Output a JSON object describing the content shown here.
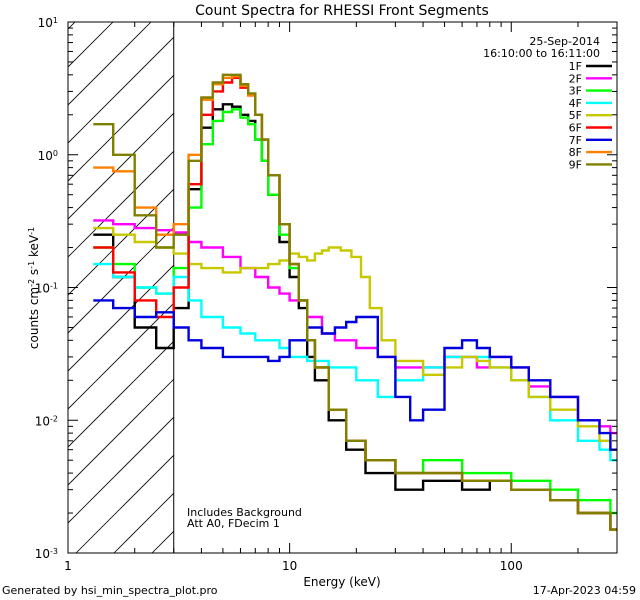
{
  "chart_data": {
    "type": "line",
    "title": "Count Spectra for RHESSI Front Segments",
    "xlabel": "Energy (keV)",
    "ylabel_base": "counts cm",
    "ylabel_exps": [
      "-2",
      "-1",
      "-1"
    ],
    "ylabel_parts": [
      " s",
      " keV"
    ],
    "xscale": "log",
    "yscale": "log",
    "xlim": [
      1,
      300
    ],
    "ylim": [
      0.001,
      10
    ],
    "x_ticks_major": [
      {
        "value": 1,
        "label": "1"
      },
      {
        "value": 10,
        "label": "10"
      },
      {
        "value": 100,
        "label": "100"
      }
    ],
    "y_ticks_major": [
      {
        "value": 0.001,
        "base": "10",
        "exp": "-3"
      },
      {
        "value": 0.01,
        "base": "10",
        "exp": "-2"
      },
      {
        "value": 0.1,
        "base": "10",
        "exp": "-1"
      },
      {
        "value": 1,
        "base": "10",
        "exp": "0"
      },
      {
        "value": 10,
        "base": "10",
        "exp": "1"
      }
    ],
    "shaded_region": {
      "x_range": [
        1,
        3
      ],
      "style": "diagonal-hatch"
    },
    "date": "25-Sep-2014",
    "time_range": "16:10:00 to 16:11:00",
    "annotations": [
      "Includes Background",
      "Att A0, FDecim 1"
    ],
    "legend_position": "top-right",
    "grid": false,
    "series": [
      {
        "name": "1F",
        "color": "#000000",
        "points": [
          [
            1.3,
            0.25
          ],
          [
            1.6,
            0.12
          ],
          [
            2,
            0.05
          ],
          [
            2.5,
            0.035
          ],
          [
            3,
            0.07
          ],
          [
            3.5,
            0.55
          ],
          [
            4,
            1.6
          ],
          [
            4.5,
            2.2
          ],
          [
            5,
            2.4
          ],
          [
            5.5,
            2.3
          ],
          [
            6,
            2.0
          ],
          [
            6.5,
            1.8
          ],
          [
            7,
            1.3
          ],
          [
            7.5,
            0.9
          ],
          [
            8,
            0.5
          ],
          [
            9,
            0.22
          ],
          [
            10,
            0.12
          ],
          [
            11,
            0.07
          ],
          [
            12,
            0.03
          ],
          [
            13,
            0.02
          ],
          [
            15,
            0.01
          ],
          [
            18,
            0.006
          ],
          [
            22,
            0.004
          ],
          [
            30,
            0.003
          ],
          [
            40,
            0.0035
          ],
          [
            60,
            0.003
          ],
          [
            80,
            0.0035
          ],
          [
            100,
            0.003
          ],
          [
            150,
            0.0025
          ],
          [
            200,
            0.002
          ],
          [
            280,
            0.0015
          ]
        ]
      },
      {
        "name": "2F",
        "color": "#ff00ff",
        "points": [
          [
            1.3,
            0.32
          ],
          [
            1.6,
            0.3
          ],
          [
            2,
            0.28
          ],
          [
            2.5,
            0.27
          ],
          [
            3,
            0.26
          ],
          [
            3.5,
            0.22
          ],
          [
            4,
            0.2
          ],
          [
            5,
            0.17
          ],
          [
            6,
            0.14
          ],
          [
            7,
            0.12
          ],
          [
            8,
            0.1
          ],
          [
            9,
            0.09
          ],
          [
            10,
            0.08
          ],
          [
            12,
            0.06
          ],
          [
            14,
            0.045
          ],
          [
            16,
            0.04
          ],
          [
            20,
            0.035
          ],
          [
            25,
            0.03
          ],
          [
            30,
            0.025
          ],
          [
            40,
            0.025
          ],
          [
            50,
            0.03
          ],
          [
            60,
            0.03
          ],
          [
            70,
            0.025
          ],
          [
            80,
            0.03
          ],
          [
            100,
            0.025
          ],
          [
            120,
            0.018
          ],
          [
            150,
            0.015
          ],
          [
            200,
            0.01
          ],
          [
            250,
            0.009
          ],
          [
            280,
            0.008
          ]
        ]
      },
      {
        "name": "3F",
        "color": "#00ff00",
        "points": [
          [
            1.3,
            0.2
          ],
          [
            1.6,
            0.15
          ],
          [
            2,
            0.1
          ],
          [
            2.5,
            0.09
          ],
          [
            3,
            0.14
          ],
          [
            3.5,
            0.4
          ],
          [
            4,
            1.2
          ],
          [
            4.5,
            1.8
          ],
          [
            5,
            2.1
          ],
          [
            5.5,
            2.2
          ],
          [
            6,
            1.9
          ],
          [
            6.5,
            1.7
          ],
          [
            7,
            1.3
          ],
          [
            7.5,
            0.9
          ],
          [
            8,
            0.5
          ],
          [
            9,
            0.25
          ],
          [
            10,
            0.14
          ],
          [
            11,
            0.08
          ],
          [
            12,
            0.04
          ],
          [
            13,
            0.025
          ],
          [
            15,
            0.012
          ],
          [
            18,
            0.007
          ],
          [
            22,
            0.005
          ],
          [
            30,
            0.004
          ],
          [
            40,
            0.005
          ],
          [
            60,
            0.004
          ],
          [
            80,
            0.004
          ],
          [
            100,
            0.0035
          ],
          [
            150,
            0.003
          ],
          [
            200,
            0.0025
          ],
          [
            280,
            0.002
          ]
        ]
      },
      {
        "name": "4F",
        "color": "#00ffff",
        "points": [
          [
            1.3,
            0.15
          ],
          [
            1.6,
            0.12
          ],
          [
            2,
            0.1
          ],
          [
            2.5,
            0.09
          ],
          [
            3,
            0.12
          ],
          [
            3.5,
            0.08
          ],
          [
            4,
            0.06
          ],
          [
            5,
            0.05
          ],
          [
            6,
            0.045
          ],
          [
            7,
            0.04
          ],
          [
            8,
            0.04
          ],
          [
            9,
            0.035
          ],
          [
            10,
            0.03
          ],
          [
            12,
            0.028
          ],
          [
            15,
            0.025
          ],
          [
            20,
            0.02
          ],
          [
            25,
            0.015
          ],
          [
            30,
            0.02
          ],
          [
            40,
            0.025
          ],
          [
            50,
            0.03
          ],
          [
            60,
            0.03
          ],
          [
            80,
            0.025
          ],
          [
            100,
            0.02
          ],
          [
            120,
            0.015
          ],
          [
            150,
            0.01
          ],
          [
            200,
            0.007
          ],
          [
            250,
            0.006
          ],
          [
            280,
            0.005
          ]
        ]
      },
      {
        "name": "5F",
        "color": "#c8c800",
        "points": [
          [
            1.3,
            0.28
          ],
          [
            1.6,
            0.25
          ],
          [
            2,
            0.22
          ],
          [
            2.5,
            0.2
          ],
          [
            3,
            0.18
          ],
          [
            3.5,
            0.15
          ],
          [
            4,
            0.14
          ],
          [
            5,
            0.13
          ],
          [
            6,
            0.14
          ],
          [
            7,
            0.14
          ],
          [
            8,
            0.15
          ],
          [
            9,
            0.16
          ],
          [
            10,
            0.18
          ],
          [
            11,
            0.17
          ],
          [
            12,
            0.16
          ],
          [
            13,
            0.18
          ],
          [
            14,
            0.19
          ],
          [
            15,
            0.2
          ],
          [
            17,
            0.19
          ],
          [
            19,
            0.17
          ],
          [
            21,
            0.12
          ],
          [
            23,
            0.07
          ],
          [
            26,
            0.04
          ],
          [
            30,
            0.028
          ],
          [
            40,
            0.022
          ],
          [
            50,
            0.025
          ],
          [
            60,
            0.03
          ],
          [
            70,
            0.028
          ],
          [
            80,
            0.025
          ],
          [
            100,
            0.02
          ],
          [
            120,
            0.015
          ],
          [
            150,
            0.012
          ],
          [
            200,
            0.009
          ],
          [
            250,
            0.007
          ],
          [
            280,
            0.006
          ]
        ]
      },
      {
        "name": "6F",
        "color": "#ff0000",
        "points": [
          [
            1.3,
            0.2
          ],
          [
            1.6,
            0.13
          ],
          [
            2,
            0.08
          ],
          [
            2.5,
            0.06
          ],
          [
            3,
            0.1
          ],
          [
            3.5,
            0.6
          ],
          [
            4,
            2.0
          ],
          [
            4.5,
            3.0
          ],
          [
            5,
            3.5
          ],
          [
            5.5,
            3.8
          ],
          [
            6,
            3.2
          ],
          [
            6.5,
            2.8
          ],
          [
            7,
            2.0
          ],
          [
            7.5,
            1.3
          ],
          [
            8,
            0.7
          ],
          [
            9,
            0.3
          ],
          [
            10,
            0.15
          ],
          [
            11,
            0.08
          ],
          [
            12,
            0.04
          ],
          [
            13,
            0.025
          ],
          [
            15,
            0.012
          ],
          [
            18,
            0.007
          ],
          [
            22,
            0.005
          ],
          [
            30,
            0.004
          ],
          [
            40,
            0.004
          ],
          [
            60,
            0.0035
          ],
          [
            80,
            0.0035
          ],
          [
            100,
            0.003
          ],
          [
            150,
            0.0025
          ],
          [
            200,
            0.002
          ],
          [
            280,
            0.0015
          ]
        ]
      },
      {
        "name": "7F",
        "color": "#0000dd",
        "points": [
          [
            1.3,
            0.08
          ],
          [
            1.6,
            0.07
          ],
          [
            2,
            0.06
          ],
          [
            2.5,
            0.065
          ],
          [
            3,
            0.05
          ],
          [
            3.5,
            0.04
          ],
          [
            4,
            0.035
          ],
          [
            5,
            0.03
          ],
          [
            6,
            0.03
          ],
          [
            7,
            0.03
          ],
          [
            8,
            0.028
          ],
          [
            9,
            0.03
          ],
          [
            10,
            0.04
          ],
          [
            12,
            0.05
          ],
          [
            14,
            0.045
          ],
          [
            16,
            0.05
          ],
          [
            18,
            0.055
          ],
          [
            20,
            0.06
          ],
          [
            22,
            0.06
          ],
          [
            25,
            0.03
          ],
          [
            30,
            0.015
          ],
          [
            35,
            0.01
          ],
          [
            40,
            0.012
          ],
          [
            50,
            0.035
          ],
          [
            60,
            0.04
          ],
          [
            70,
            0.035
          ],
          [
            80,
            0.03
          ],
          [
            100,
            0.025
          ],
          [
            120,
            0.02
          ],
          [
            150,
            0.015
          ],
          [
            200,
            0.01
          ],
          [
            250,
            0.008
          ],
          [
            280,
            0.006
          ]
        ]
      },
      {
        "name": "8F",
        "color": "#ff8000",
        "points": [
          [
            1.3,
            0.8
          ],
          [
            1.6,
            0.75
          ],
          [
            2,
            0.4
          ],
          [
            2.5,
            0.25
          ],
          [
            3,
            0.3
          ],
          [
            3.5,
            1.0
          ],
          [
            4,
            2.6
          ],
          [
            4.5,
            3.4
          ],
          [
            5,
            3.8
          ],
          [
            5.5,
            3.9
          ],
          [
            6,
            3.3
          ],
          [
            6.5,
            2.8
          ],
          [
            7,
            2.0
          ],
          [
            7.5,
            1.3
          ],
          [
            8,
            0.7
          ],
          [
            9,
            0.3
          ],
          [
            10,
            0.15
          ],
          [
            11,
            0.08
          ],
          [
            12,
            0.04
          ],
          [
            13,
            0.025
          ],
          [
            15,
            0.012
          ],
          [
            18,
            0.007
          ],
          [
            22,
            0.005
          ],
          [
            30,
            0.004
          ],
          [
            40,
            0.004
          ],
          [
            60,
            0.0035
          ],
          [
            80,
            0.0035
          ],
          [
            100,
            0.003
          ],
          [
            150,
            0.0025
          ],
          [
            200,
            0.002
          ],
          [
            280,
            0.0015
          ]
        ]
      },
      {
        "name": "9F",
        "color": "#808000",
        "points": [
          [
            1.3,
            1.7
          ],
          [
            1.6,
            1.0
          ],
          [
            2,
            0.35
          ],
          [
            2.5,
            0.2
          ],
          [
            3,
            0.25
          ],
          [
            3.5,
            0.9
          ],
          [
            4,
            2.7
          ],
          [
            4.5,
            3.5
          ],
          [
            5,
            4.0
          ],
          [
            5.5,
            4.0
          ],
          [
            6,
            3.4
          ],
          [
            6.5,
            2.9
          ],
          [
            7,
            2.0
          ],
          [
            7.5,
            1.3
          ],
          [
            8,
            0.7
          ],
          [
            9,
            0.3
          ],
          [
            10,
            0.15
          ],
          [
            11,
            0.08
          ],
          [
            12,
            0.04
          ],
          [
            13,
            0.025
          ],
          [
            15,
            0.012
          ],
          [
            18,
            0.007
          ],
          [
            22,
            0.005
          ],
          [
            30,
            0.004
          ],
          [
            40,
            0.004
          ],
          [
            60,
            0.0035
          ],
          [
            80,
            0.0035
          ],
          [
            100,
            0.003
          ],
          [
            150,
            0.0025
          ],
          [
            200,
            0.002
          ],
          [
            280,
            0.0015
          ]
        ]
      }
    ]
  },
  "footer": {
    "generator": "Generated by hsi_min_spectra_plot.pro",
    "timestamp": "17-Apr-2023 04:59"
  }
}
